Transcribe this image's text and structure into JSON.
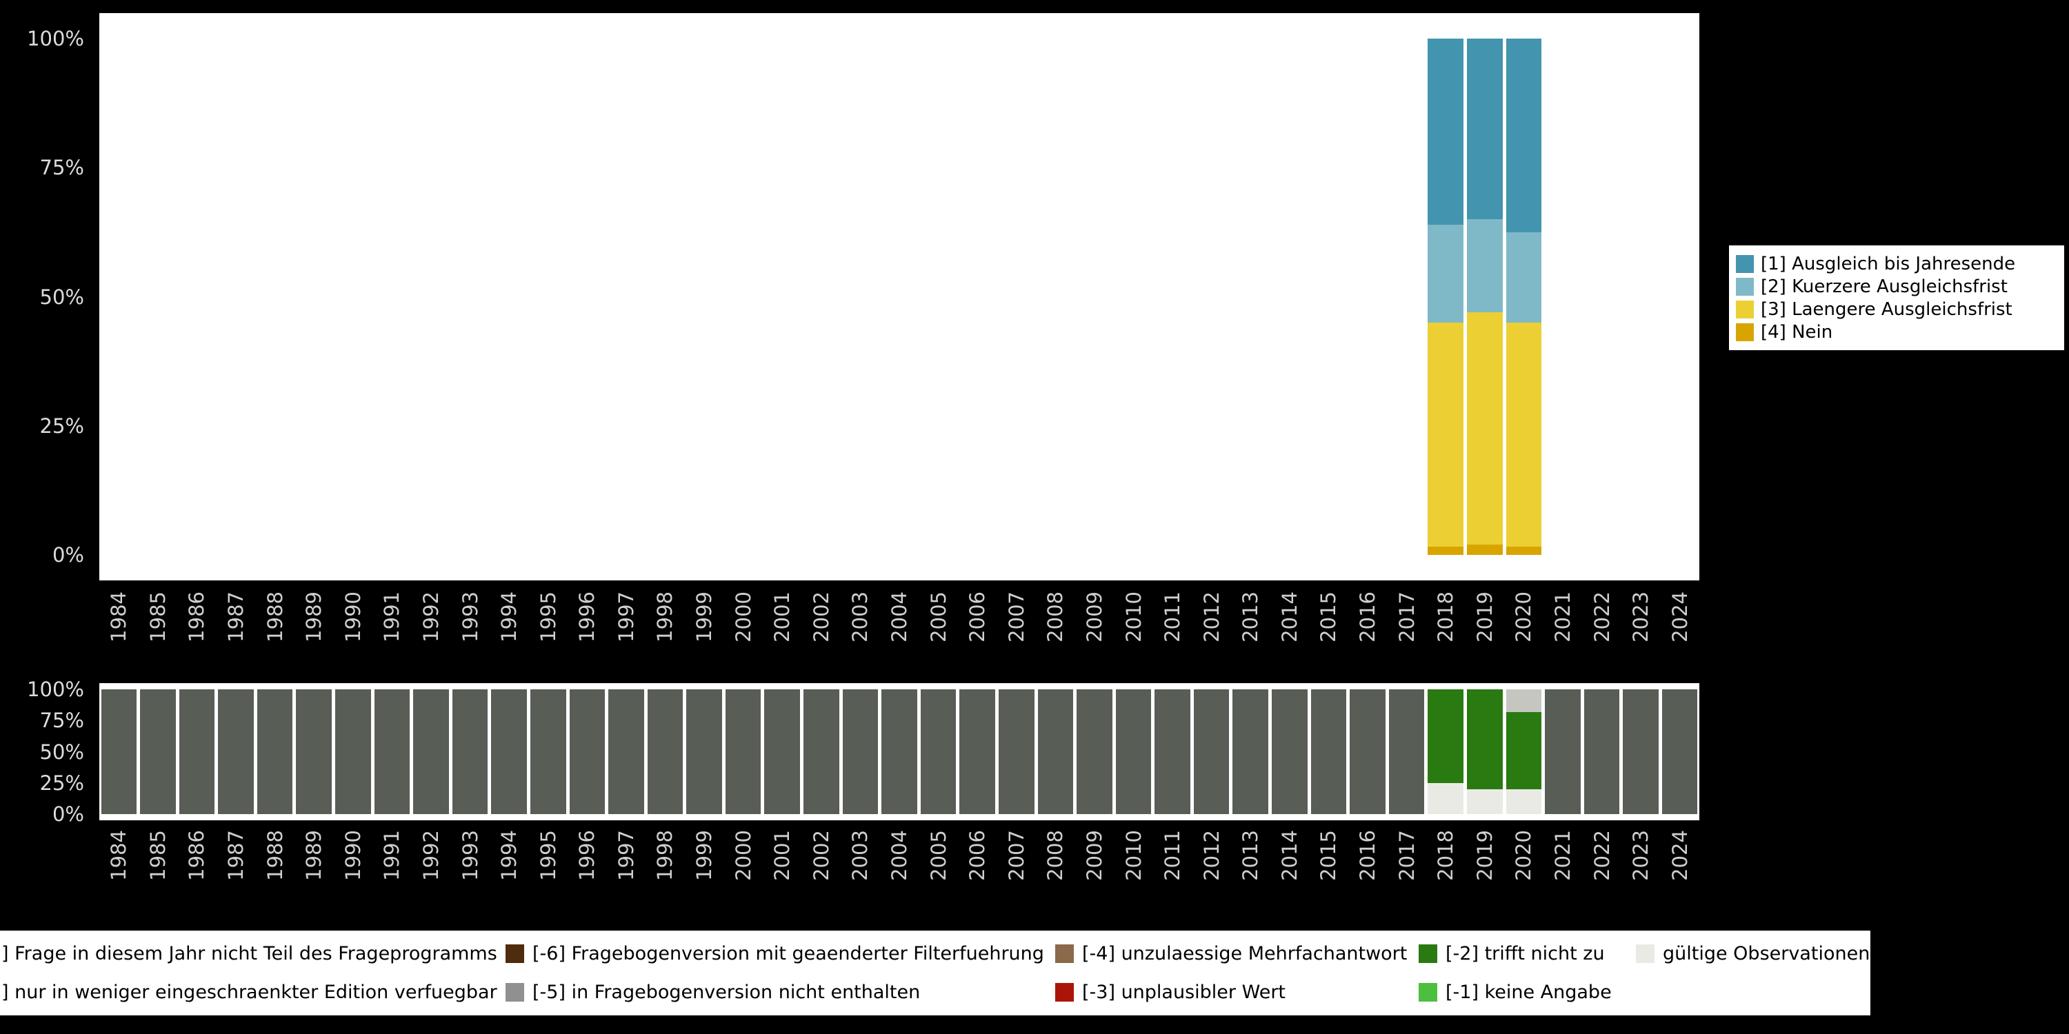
{
  "years": [
    "1984",
    "1985",
    "1986",
    "1987",
    "1988",
    "1989",
    "1990",
    "1991",
    "1992",
    "1993",
    "1994",
    "1995",
    "1996",
    "1997",
    "1998",
    "1999",
    "2000",
    "2001",
    "2002",
    "2003",
    "2004",
    "2005",
    "2006",
    "2007",
    "2008",
    "2009",
    "2010",
    "2011",
    "2012",
    "2013",
    "2014",
    "2015",
    "2016",
    "2017",
    "2018",
    "2019",
    "2020",
    "2021",
    "2022",
    "2023",
    "2024"
  ],
  "colors": {
    "background": "#000000",
    "panel": "#ffffff",
    "axis_text": "#dcdcdc",
    "year_text": "#cfcfcf"
  },
  "chart_data": [
    {
      "type": "bar",
      "variant": "stacked-percent",
      "title": "",
      "xlabel": "",
      "ylabel": "",
      "ylim": [
        0,
        100
      ],
      "grid": false,
      "legend_position": "right",
      "yticks": [
        {
          "value": 0,
          "label": "0%"
        },
        {
          "value": 25,
          "label": "25%"
        },
        {
          "value": 50,
          "label": "50%"
        },
        {
          "value": 75,
          "label": "75%"
        },
        {
          "value": 100,
          "label": "100%"
        }
      ],
      "series": [
        {
          "name": "[4] Nein",
          "color": "#d8a500",
          "values_by_year": {
            "2018": 1.5,
            "2019": 2,
            "2020": 1.5
          }
        },
        {
          "name": "[3] Laengere Ausgleichsfrist",
          "color": "#eccf33",
          "values_by_year": {
            "2018": 43.5,
            "2019": 45,
            "2020": 43.5
          }
        },
        {
          "name": "[2] Kuerzere Ausgleichsfrist",
          "color": "#7fb9c8",
          "values_by_year": {
            "2018": 19,
            "2019": 18,
            "2020": 17.5
          }
        },
        {
          "name": "[1] Ausgleich bis Jahresende",
          "color": "#4394ae",
          "values_by_year": {
            "2018": 36,
            "2019": 35,
            "2020": 37.5
          }
        }
      ]
    },
    {
      "type": "bar",
      "variant": "stacked-percent",
      "title": "",
      "xlabel": "",
      "ylabel": "",
      "ylim": [
        0,
        100
      ],
      "grid": false,
      "yticks": [
        {
          "value": 0,
          "label": "0%"
        },
        {
          "value": 25,
          "label": "25%"
        },
        {
          "value": 50,
          "label": "50%"
        },
        {
          "value": 75,
          "label": "75%"
        },
        {
          "value": 100,
          "label": "100%"
        }
      ],
      "series": [
        {
          "name": "gültige Observationen",
          "color": "#eaeae4",
          "values_by_year": {
            "2018": 25,
            "2019": 20,
            "2020": 20
          }
        },
        {
          "name": "[-2] trifft nicht zu",
          "color": "#2a7a12",
          "values_by_year": {
            "2018": 75,
            "2019": 80,
            "2020": 62
          }
        },
        {
          "name": "nur in weniger eingeschraenkter Edition verfuegbar",
          "color": "#c6c6c1",
          "values_by_year": {
            "2020": 18
          }
        },
        {
          "name": "Frage in diesem Jahr nicht Teil des Frageprogramms",
          "color": "#585d56",
          "values_by_year": {
            "2018": 0,
            "2019": 0,
            "2020": 0
          },
          "all_other_years": 100
        }
      ]
    }
  ],
  "legend_top": {
    "items": [
      {
        "label": "[1] Ausgleich bis Jahresende",
        "color": "#4394ae"
      },
      {
        "label": "[2] Kuerzere Ausgleichsfrist",
        "color": "#7fb9c8"
      },
      {
        "label": "[3] Laengere Ausgleichsfrist",
        "color": "#eccf33"
      },
      {
        "label": "[4] Nein",
        "color": "#d8a500"
      }
    ]
  },
  "legend_bottom": {
    "rows": [
      [
        {
          "label": "] Frage in diesem Jahr nicht Teil des Frageprogramms",
          "swatch": null
        },
        {
          "label": "[-6] Fragebogenversion mit geaenderter Filterfuehrung",
          "swatch": "#4f2c0e"
        },
        {
          "label": "[-4] unzulaessige Mehrfachantwort",
          "swatch": "#8a6a4a"
        },
        {
          "label": "[-2] trifft nicht zu",
          "swatch": "#2a7a12"
        },
        {
          "label": "gültige Observationen",
          "swatch": "#eaeae4"
        }
      ],
      [
        {
          "label": "] nur in weniger eingeschraenkter Edition verfuegbar",
          "swatch": null
        },
        {
          "label": "[-5] in Fragebogenversion nicht enthalten",
          "swatch": "#909090"
        },
        {
          "label": "[-3] unplausibler Wert",
          "swatch": "#ab1409"
        },
        {
          "label": "[-1] keine Angabe",
          "swatch": "#4dbf3f"
        }
      ]
    ]
  }
}
